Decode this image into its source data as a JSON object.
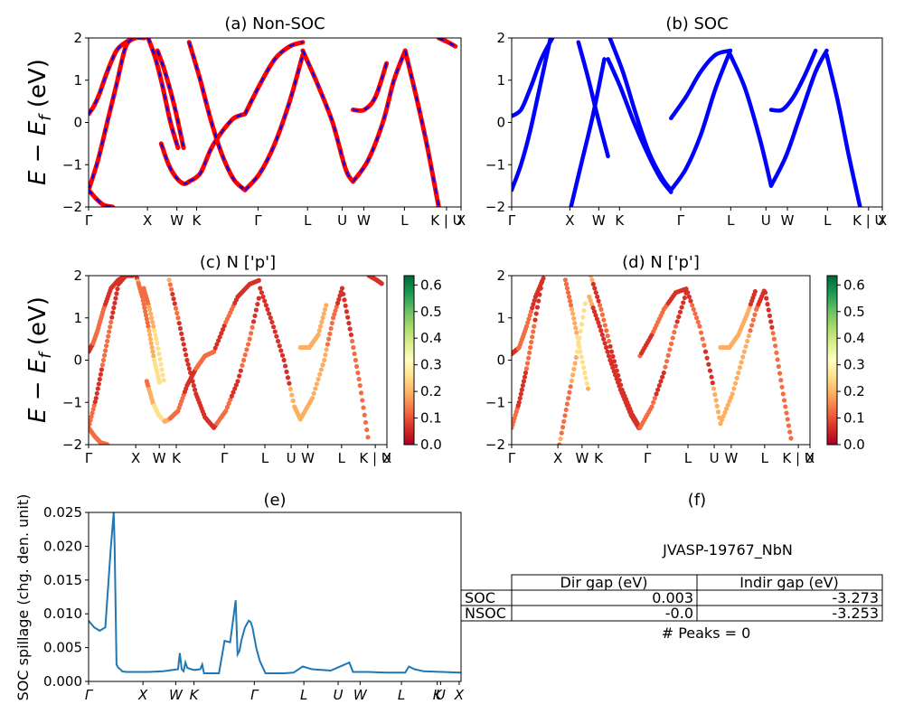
{
  "kpath": [
    "Γ",
    "X",
    "W",
    "K",
    "Γ",
    "L",
    "U",
    "W",
    "L",
    "K | U",
    "X"
  ],
  "kpath_italic": [
    "Γ",
    "X",
    "W",
    "K",
    "Γ",
    "L",
    "U",
    "W",
    "L",
    "K",
    "U",
    "X"
  ],
  "band_ylim": [
    -2,
    2
  ],
  "band_yticks": [
    "2",
    "1",
    "0",
    "−1",
    "−2"
  ],
  "band_ylabel": "E − E_f (eV)",
  "colorbar_ticks": [
    "0.6",
    "0.5",
    "0.4",
    "0.3",
    "0.2",
    "0.1",
    "0.0"
  ],
  "colors": {
    "nonsoc_red": "#ff0000",
    "nonsoc_blue": "#0000ff",
    "soc_blue": "#0000ff",
    "spillage": "#1f77b4"
  },
  "panels": {
    "a": {
      "title": "(a) Non-SOC"
    },
    "b": {
      "title": "(b) SOC"
    },
    "c": {
      "title": "(c)  N ['p']"
    },
    "d": {
      "title": "(d) N ['p']"
    },
    "e": {
      "title": "(e)",
      "ylabel": "SOC spillage (chg. den. unit)",
      "yticks": [
        "0.025",
        "0.020",
        "0.015",
        "0.010",
        "0.005",
        "0.000"
      ]
    },
    "f": {
      "title": "(f)"
    }
  },
  "info": {
    "material": "JVASP-19767_NbN",
    "table": {
      "headers": [
        "Dir gap (eV)",
        "Indir gap (eV)"
      ],
      "rows": [
        {
          "label": "SOC",
          "dir": "0.003",
          "indir": "-3.273"
        },
        {
          "label": "NSOC",
          "dir": "-0.0",
          "indir": "-3.253"
        }
      ]
    },
    "peaks": "# Peaks = 0"
  },
  "chart_data": [
    {
      "type": "line",
      "panel": "(a) Non-SOC",
      "xlabel": "",
      "ylabel": "E − E_f (eV)",
      "ylim": [
        -2,
        2
      ],
      "x_ticks": [
        "Γ",
        "X",
        "W",
        "K",
        "Γ",
        "L",
        "U",
        "W",
        "L",
        "K | U",
        "X"
      ],
      "series": [
        {
          "x": [
            0,
            0.3,
            0.6,
            1,
            1.5,
            2,
            2.5,
            3
          ],
          "values": [
            0.2,
            0.4,
            0.7,
            1.2,
            1.7,
            1.9,
            2,
            2
          ]
        },
        {
          "x": [
            0,
            0.5,
            1,
            1.5,
            2,
            2.5
          ],
          "values": [
            -1.6,
            -0.9,
            0,
            0.9,
            1.8,
            2
          ]
        },
        {
          "x": [
            0,
            0.4,
            0.8,
            1.3
          ],
          "values": [
            -1.6,
            -1.8,
            -1.95,
            -2
          ]
        },
        {
          "x": [
            3.2,
            3.6,
            4,
            4.4,
            4.8
          ],
          "values": [
            2,
            1.5,
            0.8,
            0,
            -0.6
          ]
        },
        {
          "x": [
            3.9,
            4.3,
            4.7,
            5.1,
            5.4
          ],
          "values": [
            -0.5,
            -1,
            -1.3,
            -1.45,
            -1.4
          ]
        },
        {
          "x": [
            3.7,
            4.1,
            4.6,
            5.1
          ],
          "values": [
            1.7,
            1.2,
            0.4,
            -0.6
          ]
        },
        {
          "x": [
            5.4,
            6,
            6.6,
            7.2,
            7.8,
            8.4
          ],
          "values": [
            -1.4,
            -1.2,
            -0.6,
            -0.2,
            0.1,
            0.2
          ]
        },
        {
          "x": [
            5.4,
            6,
            6.6,
            7.2,
            7.8,
            8.4
          ],
          "values": [
            1.9,
            1,
            0,
            -0.8,
            -1.35,
            -1.6
          ]
        },
        {
          "x": [
            8.4,
            9.2,
            10,
            10.8,
            11.5
          ],
          "values": [
            0.2,
            0.9,
            1.5,
            1.8,
            1.9
          ]
        },
        {
          "x": [
            8.4,
            9.2,
            10,
            10.8,
            11.5
          ],
          "values": [
            -1.6,
            -1.2,
            -0.5,
            0.5,
            1.6
          ]
        },
        {
          "x": [
            11.5,
            12.3,
            13.1,
            13.8,
            14.2
          ],
          "values": [
            1.7,
            0.9,
            0,
            -1.1,
            -1.4
          ]
        },
        {
          "x": [
            14.2,
            14.8,
            15.4,
            16
          ],
          "values": [
            0.3,
            0.3,
            0.6,
            1.4
          ]
        },
        {
          "x": [
            14.2,
            15,
            15.8,
            16.4,
            17
          ],
          "values": [
            -1.4,
            -0.9,
            0,
            1,
            1.7
          ]
        },
        {
          "x": [
            17,
            17.6,
            18.2,
            18.8
          ],
          "values": [
            1.7,
            0.6,
            -0.6,
            -2
          ]
        },
        {
          "x": [
            18.8,
            19.3,
            19.7
          ],
          "values": [
            2,
            1.9,
            1.8
          ]
        }
      ]
    },
    {
      "type": "line",
      "panel": "(b) SOC",
      "xlabel": "",
      "ylabel": "",
      "ylim": [
        -2,
        2
      ],
      "x_ticks": [
        "Γ",
        "X",
        "W",
        "K",
        "Γ",
        "L",
        "U",
        "W",
        "L",
        "K | U",
        "X"
      ],
      "series": [
        {
          "x": [
            0,
            0.5,
            1,
            1.6,
            2.2
          ],
          "values": [
            0.15,
            0.3,
            0.8,
            1.5,
            2
          ]
        },
        {
          "x": [
            0,
            0.5,
            1,
            1.5,
            2.1
          ],
          "values": [
            -1.6,
            -1,
            -0.2,
            0.8,
            2
          ]
        },
        {
          "x": [
            3.2,
            3.8,
            4.4,
            5
          ],
          "values": [
            -2,
            -0.9,
            0.2,
            1.5
          ]
        },
        {
          "x": [
            3.6,
            4.1,
            4.6,
            5.2
          ],
          "values": [
            1.9,
            1.1,
            0.2,
            -0.8
          ]
        },
        {
          "x": [
            5.3,
            6,
            6.7,
            7.4,
            8.1,
            8.6
          ],
          "values": [
            2,
            1.2,
            0.2,
            -0.7,
            -1.3,
            -1.6
          ]
        },
        {
          "x": [
            5.2,
            5.9,
            6.6,
            7.3,
            8,
            8.6
          ],
          "values": [
            1.5,
            0.8,
            0,
            -0.7,
            -1.3,
            -1.65
          ]
        },
        {
          "x": [
            8.6,
            9.4,
            10.2,
            11,
            11.8
          ],
          "values": [
            -1.6,
            -1.1,
            -0.3,
            0.8,
            1.7
          ]
        },
        {
          "x": [
            8.6,
            9.4,
            10.2,
            11,
            11.8
          ],
          "values": [
            0.1,
            0.6,
            1.2,
            1.6,
            1.7
          ]
        },
        {
          "x": [
            11.8,
            12.6,
            13.4,
            14
          ],
          "values": [
            1.6,
            0.8,
            -0.4,
            -1.5
          ]
        },
        {
          "x": [
            14,
            14.6,
            15.2,
            15.8,
            16.4
          ],
          "values": [
            0.3,
            0.3,
            0.6,
            1.1,
            1.7
          ]
        },
        {
          "x": [
            14,
            14.8,
            15.6,
            16.4,
            17
          ],
          "values": [
            -1.5,
            -0.8,
            0.2,
            1.2,
            1.7
          ]
        },
        {
          "x": [
            17,
            17.6,
            18.2,
            18.8
          ],
          "values": [
            1.6,
            0.5,
            -0.8,
            -2
          ]
        }
      ]
    },
    {
      "type": "scatter",
      "panel": "(c)  N ['p']",
      "ylim": [
        -2,
        2
      ],
      "colorbar_range": [
        0.0,
        0.63
      ]
    },
    {
      "type": "scatter",
      "panel": "(d) N ['p']",
      "ylim": [
        -2,
        2
      ],
      "colorbar_range": [
        0.0,
        0.64
      ]
    },
    {
      "type": "line",
      "panel": "(e)",
      "ylabel": "SOC spillage (chg. den. unit)",
      "ylim": [
        0,
        0.025
      ],
      "x_ticks": [
        "Γ",
        "X",
        "W",
        "K",
        "Γ",
        "L",
        "U",
        "W",
        "L",
        "K",
        "U",
        "X"
      ],
      "series": [
        {
          "name": "",
          "x": [
            0,
            0.03,
            0.06,
            0.09,
            0.12,
            0.135,
            0.14,
            0.15,
            0.16,
            0.17,
            0.18,
            0.2,
            0.25,
            0.32,
            0.4,
            0.48,
            0.49,
            0.5,
            0.51,
            0.52,
            0.53,
            0.55,
            0.57,
            0.6,
            0.61,
            0.62,
            0.64,
            0.66,
            0.68,
            0.7,
            0.73,
            0.76,
            0.79,
            0.8,
            0.81,
            0.82,
            0.84,
            0.86,
            0.87,
            0.88,
            0.9,
            0.92,
            0.95,
            1.0,
            1.05,
            1.1,
            1.15,
            1.2,
            1.3,
            1.4,
            1.42,
            1.45,
            1.5,
            1.6,
            1.7,
            1.72,
            1.75,
            1.8,
            1.9,
            2.0
          ],
          "values": [
            0.009,
            0.008,
            0.0075,
            0.008,
            0.02,
            0.025,
            0.02,
            0.0025,
            0.002,
            0.0018,
            0.0015,
            0.0014,
            0.0014,
            0.0014,
            0.0015,
            0.0018,
            0.0042,
            0.0018,
            0.0015,
            0.0028,
            0.002,
            0.0018,
            0.0017,
            0.0018,
            0.0025,
            0.0012,
            0.0012,
            0.0012,
            0.0012,
            0.0012,
            0.006,
            0.0058,
            0.012,
            0.004,
            0.0045,
            0.006,
            0.008,
            0.009,
            0.0088,
            0.008,
            0.005,
            0.003,
            0.0012,
            0.0012,
            0.0012,
            0.0013,
            0.0022,
            0.0018,
            0.0016,
            0.0028,
            0.0014,
            0.0014,
            0.0014,
            0.0013,
            0.0013,
            0.0022,
            0.0018,
            0.0015,
            0.0014,
            0.0013
          ]
        }
      ]
    }
  ]
}
